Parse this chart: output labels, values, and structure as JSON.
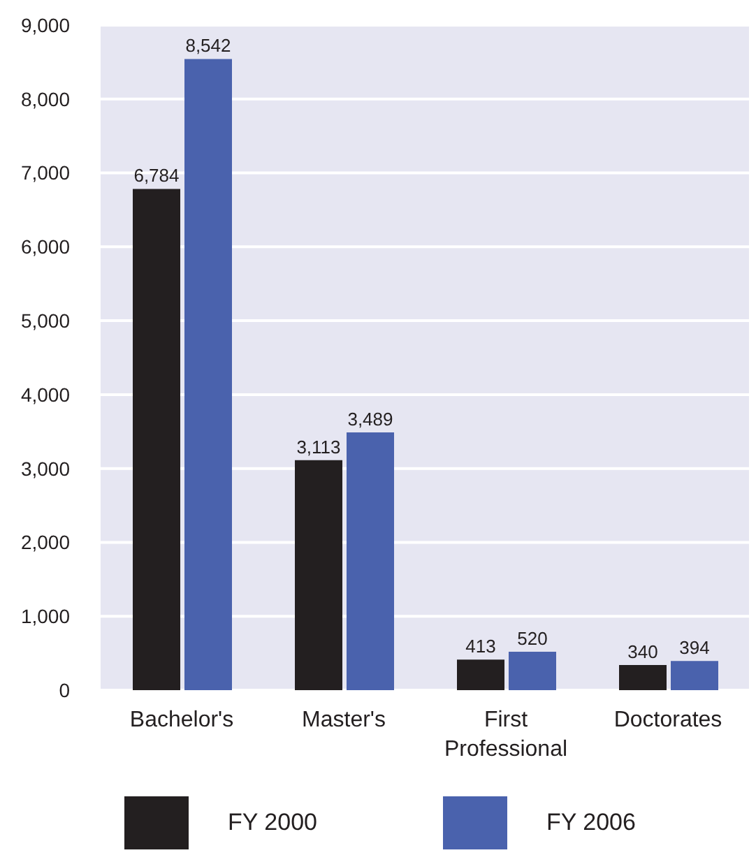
{
  "chart_data": {
    "type": "bar",
    "categories": [
      "Bachelor's",
      "Master's",
      "First Professional",
      "Doctorates"
    ],
    "series": [
      {
        "name": "FY 2000",
        "color": "#231f20",
        "values": [
          6784,
          3113,
          413,
          340
        ],
        "value_labels": [
          "6,784",
          "3,113",
          "413",
          "340"
        ]
      },
      {
        "name": "FY 2006",
        "color": "#4a62ad",
        "values": [
          8542,
          3489,
          520,
          394
        ],
        "value_labels": [
          "8,542",
          "3,489",
          "520",
          "394"
        ]
      }
    ],
    "ylim": [
      0,
      9000
    ],
    "yticks": [
      0,
      {
        "value": 1000,
        "label": "1,000"
      },
      {
        "value": 2000,
        "label": "2,000"
      },
      {
        "value": 3000,
        "label": "3,000"
      },
      {
        "value": 4000,
        "label": "4,000"
      },
      {
        "value": 5000,
        "label": "5,000"
      },
      {
        "value": 6000,
        "label": "6,000"
      },
      {
        "value": 7000,
        "label": "7,000"
      },
      {
        "value": 8000,
        "label": "8,000"
      },
      {
        "value": 9000,
        "label": "9,000"
      }
    ],
    "grid": "y",
    "legend": "bottom"
  }
}
